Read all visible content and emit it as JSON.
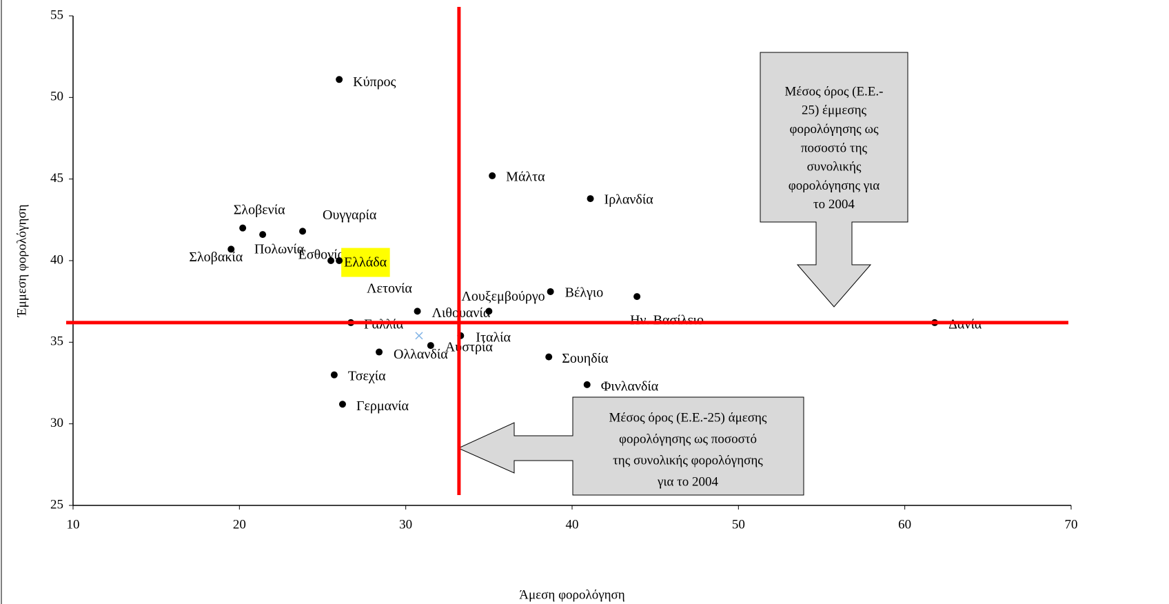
{
  "chart_data": {
    "type": "scatter",
    "x_label": "Άμεση φορολόγηση",
    "y_label": "Έμμεση φορολόγηση",
    "xlim": [
      10,
      70
    ],
    "xticks": [
      10,
      20,
      30,
      40,
      50,
      60,
      70
    ],
    "ylim": [
      25,
      55
    ],
    "yticks": [
      25,
      30,
      35,
      40,
      45,
      50,
      55
    ],
    "color": "#000000",
    "points": [
      {
        "label": "Κύπρος",
        "x": 26.0,
        "y": 51.1
      },
      {
        "label": "Μάλτα",
        "x": 35.2,
        "y": 45.2
      },
      {
        "label": "Ιρλανδία",
        "x": 41.1,
        "y": 43.8
      },
      {
        "label": "Σλοβενία",
        "x": 20.2,
        "y": 42.0
      },
      {
        "label": "Πολωνία",
        "x": 21.4,
        "y": 41.6
      },
      {
        "label": "Ουγγαρία",
        "x": 23.8,
        "y": 41.8
      },
      {
        "label": "Σλοβακία",
        "x": 19.5,
        "y": 40.7
      },
      {
        "label": "Εσθονία",
        "x": 25.5,
        "y": 40.0
      },
      {
        "label": "Ελλάδα",
        "x": 26.0,
        "y": 40.0,
        "highlight": "#ffff00"
      },
      {
        "label": "Λετονία",
        "x": 30.8,
        "y": 35.4,
        "color": "#7fb2e5"
      },
      {
        "label": "Λιθουανία",
        "x": 30.7,
        "y": 36.9
      },
      {
        "label": "Λουξεμβούργο",
        "x": 35.0,
        "y": 36.9
      },
      {
        "label": "Βέλγιο",
        "x": 38.7,
        "y": 38.1
      },
      {
        "label": "Ην. Βασίλειο",
        "x": 43.9,
        "y": 37.8
      },
      {
        "label": "Γαλλία",
        "x": 26.7,
        "y": 36.2
      },
      {
        "label": "Δανία",
        "x": 61.8,
        "y": 36.2
      },
      {
        "label": "Ιταλία",
        "x": 33.3,
        "y": 35.4
      },
      {
        "label": "Αυστρία",
        "x": 31.5,
        "y": 34.8
      },
      {
        "label": "Ολλανδία",
        "x": 28.4,
        "y": 34.4
      },
      {
        "label": "Σουηδία",
        "x": 38.6,
        "y": 34.1
      },
      {
        "label": "Τσεχία",
        "x": 25.7,
        "y": 33.0
      },
      {
        "label": "Φινλανδία",
        "x": 40.9,
        "y": 32.4
      },
      {
        "label": "Γερμανία",
        "x": 26.2,
        "y": 31.2
      }
    ],
    "reference_lines": {
      "x": 33.2,
      "y": 36.2,
      "color": "#ff0000"
    },
    "annotations": [
      {
        "lines": [
          "Μέσος όρος (Ε.Ε.-",
          "25) έμμεσης",
          "φορολόγησης ως",
          "ποσοστό της",
          "συνολικής",
          "φορολόγησης για",
          "το 2004"
        ]
      },
      {
        "lines": [
          "Μέσος όρος (Ε.Ε.-25) άμεσης",
          "φορολόγησης ως ποσοστό",
          "της συνολικής φορολόγησης",
          "για το 2004"
        ]
      }
    ]
  }
}
